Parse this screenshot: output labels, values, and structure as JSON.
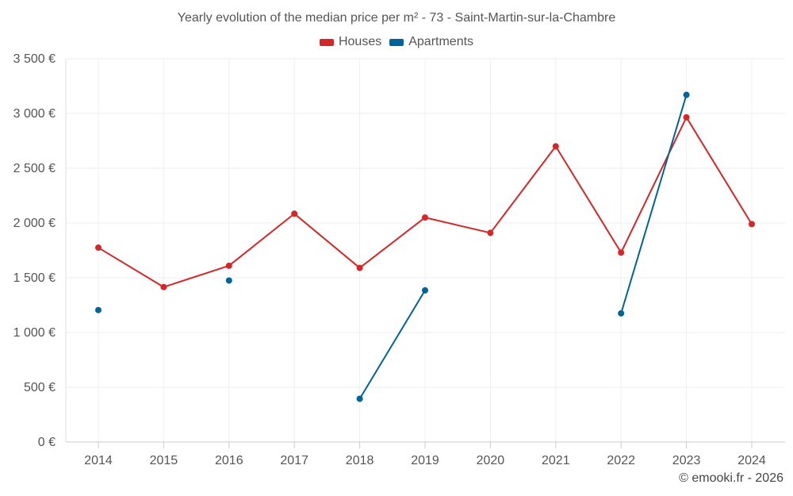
{
  "chart_data": {
    "type": "line",
    "title": "Yearly evolution of the median price per m² - 73 - Saint-Martin-sur-la-Chambre",
    "xlabel": "",
    "ylabel": "",
    "categories": [
      "2014",
      "2015",
      "2016",
      "2017",
      "2018",
      "2019",
      "2020",
      "2021",
      "2022",
      "2023",
      "2024"
    ],
    "ylim": [
      0,
      3500
    ],
    "yticks": [
      0,
      500,
      1000,
      1500,
      2000,
      2500,
      3000,
      3500
    ],
    "ytick_labels": [
      "0 €",
      "500 €",
      "1 000 €",
      "1 500 €",
      "2 000 €",
      "2 500 €",
      "3 000 €",
      "3 500 €"
    ],
    "grid": true,
    "legend_position": "top-center",
    "series": [
      {
        "name": "Houses",
        "color": "#d62728",
        "values": [
          1775,
          1415,
          1610,
          2085,
          1590,
          2050,
          1910,
          2700,
          1730,
          2965,
          1990
        ]
      },
      {
        "name": "Apartments",
        "color": "#00639a",
        "values": [
          1205,
          null,
          1475,
          null,
          395,
          1385,
          null,
          null,
          1175,
          3170,
          null
        ]
      }
    ]
  },
  "footer": "© emooki.fr - 2026"
}
